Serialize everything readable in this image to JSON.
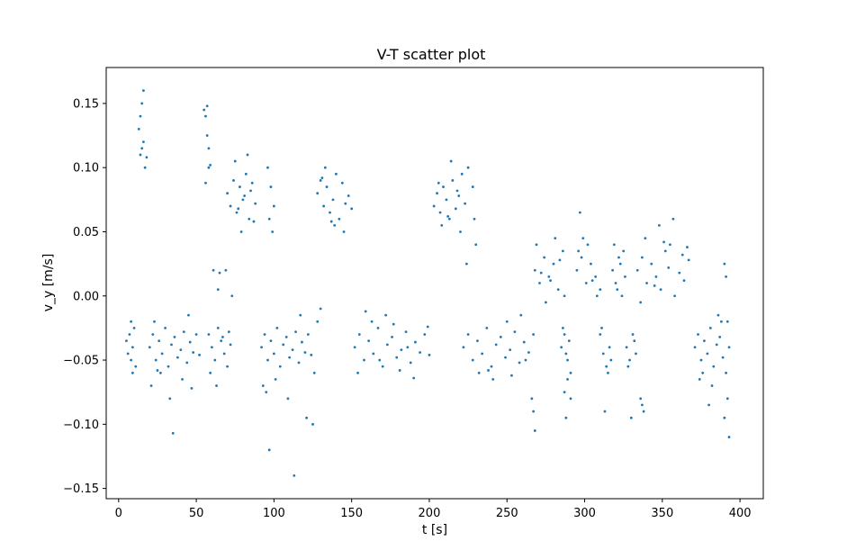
{
  "chart_data": {
    "type": "scatter",
    "title": "V-T scatter plot",
    "xlabel": "t [s]",
    "ylabel": "v_y [m/s]",
    "xlim": [
      -8,
      415
    ],
    "ylim": [
      -0.158,
      0.178
    ],
    "x_ticks": [
      0,
      50,
      100,
      150,
      200,
      250,
      300,
      350,
      400
    ],
    "x_tick_labels": [
      "0",
      "50",
      "100",
      "150",
      "200",
      "250",
      "300",
      "350",
      "400"
    ],
    "y_ticks": [
      -0.15,
      -0.1,
      -0.05,
      0.0,
      0.05,
      0.1,
      0.15
    ],
    "y_tick_labels": [
      "−0.15",
      "−0.10",
      "−0.05",
      "0.00",
      "0.05",
      "0.10",
      "0.15"
    ],
    "grid": false,
    "legend": "none",
    "marker_color": "#1f77b4",
    "series": [
      {
        "x": [
          5,
          6,
          7,
          8,
          9,
          10,
          11,
          8,
          9,
          13,
          14,
          15,
          16,
          17,
          14,
          16,
          18,
          15,
          20,
          22,
          24,
          26,
          28,
          30,
          32,
          34,
          36,
          38,
          40,
          42,
          44,
          46,
          48,
          50,
          52,
          21,
          27,
          33,
          41,
          47,
          23,
          35,
          45,
          25,
          55,
          56,
          57,
          58,
          56,
          57,
          58,
          59,
          58,
          60,
          62,
          64,
          66,
          68,
          70,
          72,
          59,
          63,
          67,
          71,
          61,
          65,
          69,
          64,
          73,
          70,
          72,
          74,
          76,
          78,
          80,
          82,
          84,
          86,
          88,
          75,
          79,
          83,
          87,
          77,
          81,
          85,
          92,
          94,
          96,
          98,
          100,
          102,
          104,
          106,
          108,
          110,
          112,
          114,
          116,
          118,
          120,
          122,
          124,
          126,
          128,
          130,
          93,
          101,
          109,
          117,
          125,
          97,
          113,
          121,
          95,
          96,
          98,
          100,
          97,
          99,
          128,
          130,
          132,
          134,
          136,
          138,
          140,
          142,
          144,
          146,
          148,
          150,
          133,
          139,
          145,
          131,
          137,
          152,
          155,
          158,
          161,
          164,
          167,
          170,
          173,
          176,
          179,
          182,
          185,
          188,
          191,
          194,
          197,
          200,
          154,
          163,
          172,
          181,
          190,
          199,
          159,
          168,
          177,
          186,
          203,
          205,
          207,
          209,
          211,
          213,
          215,
          217,
          219,
          221,
          223,
          225,
          208,
          214,
          220,
          206,
          212,
          218,
          228,
          229,
          230,
          224,
          222,
          225,
          228,
          231,
          234,
          237,
          240,
          243,
          246,
          249,
          252,
          255,
          258,
          261,
          264,
          267,
          232,
          241,
          250,
          259,
          238,
          253,
          262,
          268,
          271,
          274,
          277,
          280,
          283,
          286,
          269,
          275,
          281,
          287,
          272,
          278,
          284,
          267,
          268,
          266,
          285,
          287,
          289,
          291,
          288,
          290,
          286,
          288,
          287,
          291,
          289,
          295,
          298,
          301,
          304,
          307,
          310,
          296,
          302,
          308,
          299,
          305,
          297,
          310,
          312,
          314,
          316,
          311,
          315,
          317,
          313,
          318,
          320,
          322,
          324,
          326,
          319,
          323,
          321,
          325,
          327,
          329,
          331,
          333,
          328,
          332,
          330,
          334,
          337,
          340,
          343,
          346,
          349,
          352,
          355,
          358,
          361,
          364,
          367,
          339,
          348,
          357,
          366,
          345,
          354,
          363,
          336,
          351,
          336,
          338,
          337,
          371,
          373,
          375,
          377,
          379,
          381,
          383,
          385,
          387,
          389,
          376,
          382,
          388,
          374,
          380,
          386,
          390,
          391,
          392,
          393,
          391,
          392,
          390,
          393
        ],
        "y": [
          -0.035,
          -0.045,
          -0.03,
          -0.05,
          -0.04,
          -0.025,
          -0.055,
          -0.02,
          -0.06,
          0.13,
          0.11,
          0.15,
          0.12,
          0.1,
          0.14,
          0.16,
          0.108,
          0.115,
          -0.04,
          -0.03,
          -0.05,
          -0.035,
          -0.045,
          -0.025,
          -0.055,
          -0.038,
          -0.032,
          -0.048,
          -0.042,
          -0.028,
          -0.052,
          -0.036,
          -0.044,
          -0.03,
          -0.046,
          -0.07,
          -0.06,
          -0.08,
          -0.065,
          -0.072,
          -0.02,
          -0.107,
          -0.015,
          -0.058,
          0.145,
          0.14,
          0.125,
          0.1,
          0.088,
          0.148,
          0.115,
          0.102,
          -0.03,
          -0.04,
          -0.05,
          -0.025,
          -0.035,
          -0.045,
          -0.055,
          -0.038,
          -0.06,
          -0.07,
          -0.032,
          -0.028,
          0.02,
          0.018,
          0.02,
          0.005,
          0.0,
          0.08,
          0.07,
          0.09,
          0.065,
          0.085,
          0.075,
          0.095,
          0.06,
          0.088,
          0.072,
          0.105,
          0.05,
          0.11,
          0.058,
          0.068,
          0.078,
          0.082,
          -0.04,
          -0.03,
          -0.05,
          -0.035,
          -0.045,
          -0.025,
          -0.055,
          -0.038,
          -0.032,
          -0.048,
          -0.042,
          -0.028,
          -0.052,
          -0.036,
          -0.044,
          -0.03,
          -0.046,
          -0.06,
          -0.02,
          -0.01,
          -0.07,
          -0.065,
          -0.08,
          -0.015,
          -0.1,
          -0.12,
          -0.14,
          -0.095,
          -0.075,
          0.1,
          0.085,
          0.07,
          0.06,
          0.05,
          0.08,
          0.09,
          0.07,
          0.085,
          0.065,
          0.075,
          0.095,
          0.06,
          0.088,
          0.072,
          0.078,
          0.068,
          0.1,
          0.055,
          0.05,
          0.092,
          0.058,
          -0.04,
          -0.03,
          -0.05,
          -0.035,
          -0.045,
          -0.025,
          -0.055,
          -0.038,
          -0.032,
          -0.048,
          -0.042,
          -0.028,
          -0.052,
          -0.036,
          -0.044,
          -0.03,
          -0.046,
          -0.06,
          -0.02,
          -0.015,
          -0.058,
          -0.064,
          -0.024,
          -0.012,
          -0.05,
          -0.022,
          -0.04,
          0.07,
          0.08,
          0.065,
          0.085,
          0.075,
          0.06,
          0.09,
          0.068,
          0.078,
          0.095,
          0.072,
          0.1,
          0.055,
          0.105,
          0.05,
          0.088,
          0.062,
          0.082,
          0.085,
          0.06,
          0.04,
          0.025,
          -0.04,
          -0.03,
          -0.05,
          -0.035,
          -0.045,
          -0.025,
          -0.055,
          -0.038,
          -0.032,
          -0.048,
          -0.042,
          -0.028,
          -0.052,
          -0.036,
          -0.044,
          -0.03,
          -0.06,
          -0.065,
          -0.02,
          -0.015,
          -0.058,
          -0.062,
          -0.05,
          0.02,
          0.01,
          0.03,
          0.015,
          0.025,
          0.005,
          0.035,
          0.04,
          -0.005,
          0.045,
          0.0,
          0.018,
          0.012,
          0.028,
          -0.09,
          -0.105,
          -0.08,
          -0.04,
          -0.03,
          -0.05,
          -0.06,
          -0.045,
          -0.035,
          -0.025,
          -0.095,
          -0.075,
          -0.08,
          -0.065,
          0.02,
          0.03,
          0.01,
          0.025,
          0.015,
          0.005,
          0.035,
          0.04,
          0.0,
          0.045,
          0.012,
          0.065,
          -0.03,
          -0.045,
          -0.055,
          -0.04,
          -0.025,
          -0.06,
          -0.05,
          -0.09,
          0.02,
          0.01,
          0.03,
          0.0,
          0.015,
          0.04,
          0.025,
          0.005,
          0.035,
          -0.04,
          -0.05,
          -0.03,
          -0.045,
          -0.055,
          -0.035,
          -0.095,
          0.02,
          0.03,
          0.01,
          0.025,
          0.015,
          0.005,
          0.035,
          0.04,
          0.0,
          0.018,
          0.012,
          0.028,
          0.045,
          0.055,
          0.06,
          0.038,
          0.008,
          0.022,
          0.032,
          -0.005,
          0.042,
          -0.08,
          -0.09,
          -0.085,
          -0.04,
          -0.03,
          -0.05,
          -0.035,
          -0.045,
          -0.025,
          -0.055,
          -0.038,
          -0.032,
          -0.048,
          -0.06,
          -0.07,
          -0.02,
          -0.065,
          -0.085,
          -0.015,
          0.025,
          0.015,
          -0.02,
          -0.04,
          -0.06,
          -0.08,
          -0.095,
          -0.11
        ]
      }
    ]
  }
}
